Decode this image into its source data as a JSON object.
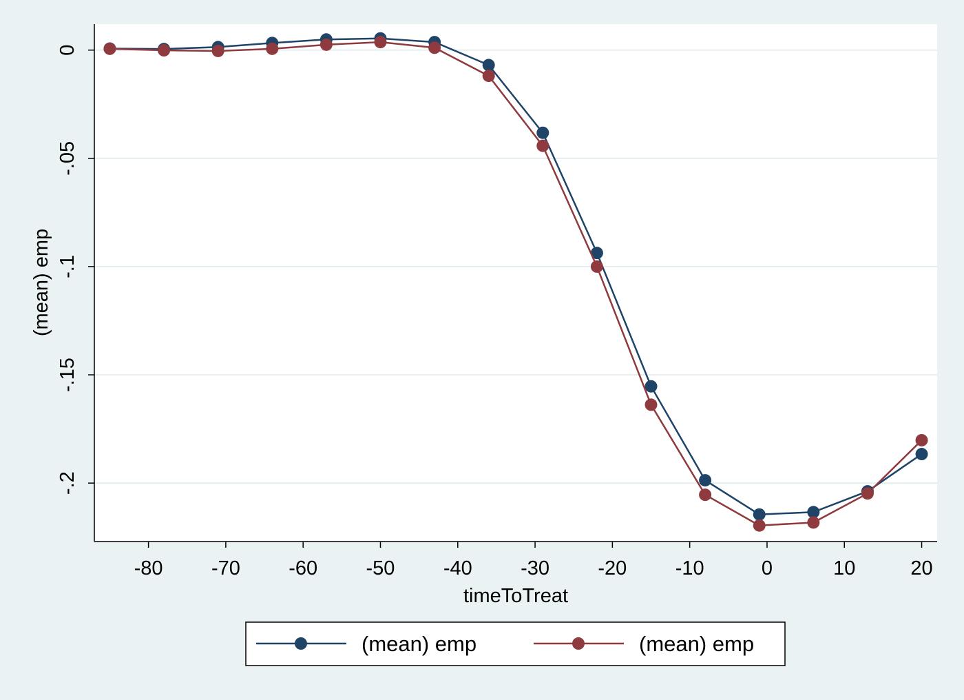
{
  "chart_data": {
    "type": "line",
    "title": "",
    "xlabel": "timeToTreat",
    "ylabel": "(mean) emp",
    "xlim": [
      -87,
      22
    ],
    "ylim": [
      -0.227,
      0.012
    ],
    "x_ticks": [
      -80,
      -70,
      -60,
      -50,
      -40,
      -30,
      -20,
      -10,
      0,
      10,
      20
    ],
    "x_tick_labels": [
      "-80",
      "-70",
      "-60",
      "-50",
      "-40",
      "-30",
      "-20",
      "-10",
      "0",
      "10",
      "20"
    ],
    "y_ticks": [
      0,
      -0.05,
      -0.1,
      -0.15,
      -0.2
    ],
    "y_tick_labels": [
      "0",
      "-.05",
      "-.1",
      "-.15",
      "-.2"
    ],
    "grid": true,
    "legend_position": "bottom",
    "x": [
      -85,
      -78,
      -71,
      -64,
      -57,
      -50,
      -43,
      -36,
      -29,
      -22,
      -15,
      -8,
      -1,
      6,
      13,
      20
    ],
    "series": [
      {
        "name": "(mean) emp",
        "color": "#1f4468",
        "values": [
          0.0007,
          0.0005,
          0.0014,
          0.0033,
          0.0049,
          0.0054,
          0.0037,
          -0.0069,
          -0.0382,
          -0.0937,
          -0.1553,
          -0.1987,
          -0.2145,
          -0.2134,
          -0.2038,
          -0.1866
        ]
      },
      {
        "name": "(mean) emp",
        "color": "#8e3a3f",
        "values": [
          0.0006,
          -0.0001,
          -0.0004,
          0.0006,
          0.0025,
          0.0037,
          0.0011,
          -0.0119,
          -0.0442,
          -0.1,
          -0.1638,
          -0.2054,
          -0.2196,
          -0.2182,
          -0.2048,
          -0.1802
        ]
      }
    ]
  }
}
